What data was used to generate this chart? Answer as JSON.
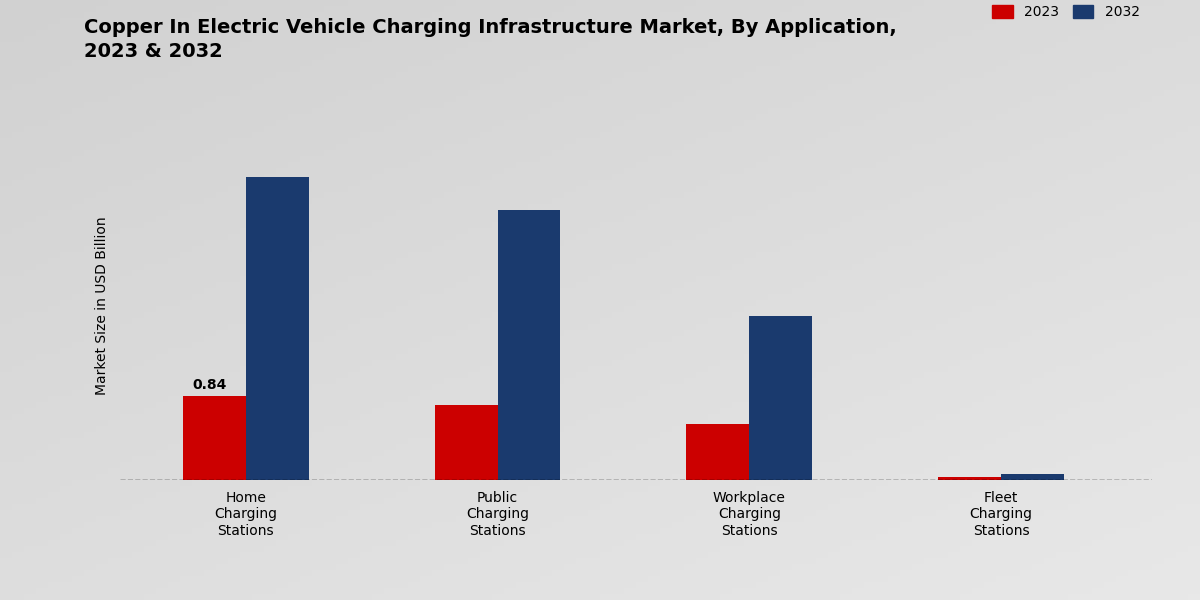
{
  "title": "Copper In Electric Vehicle Charging Infrastructure Market, By Application,\n2023 & 2032",
  "ylabel": "Market Size in USD Billion",
  "categories": [
    "Home\nCharging\nStations",
    "Public\nCharging\nStations",
    "Workplace\nCharging\nStations",
    "Fleet\nCharging\nStations"
  ],
  "values_2023": [
    0.84,
    0.75,
    0.56,
    0.03
  ],
  "values_2032": [
    3.05,
    2.72,
    1.65,
    0.06
  ],
  "color_2023": "#cc0000",
  "color_2032": "#1a3a6e",
  "bar_annotation": "0.84",
  "legend_labels": [
    "2023",
    "2032"
  ],
  "background_color": "#d8d8d8",
  "ylim": [
    0,
    3.5
  ],
  "bar_width": 0.25,
  "group_positions": [
    0.5,
    1.5,
    2.5,
    3.5
  ]
}
